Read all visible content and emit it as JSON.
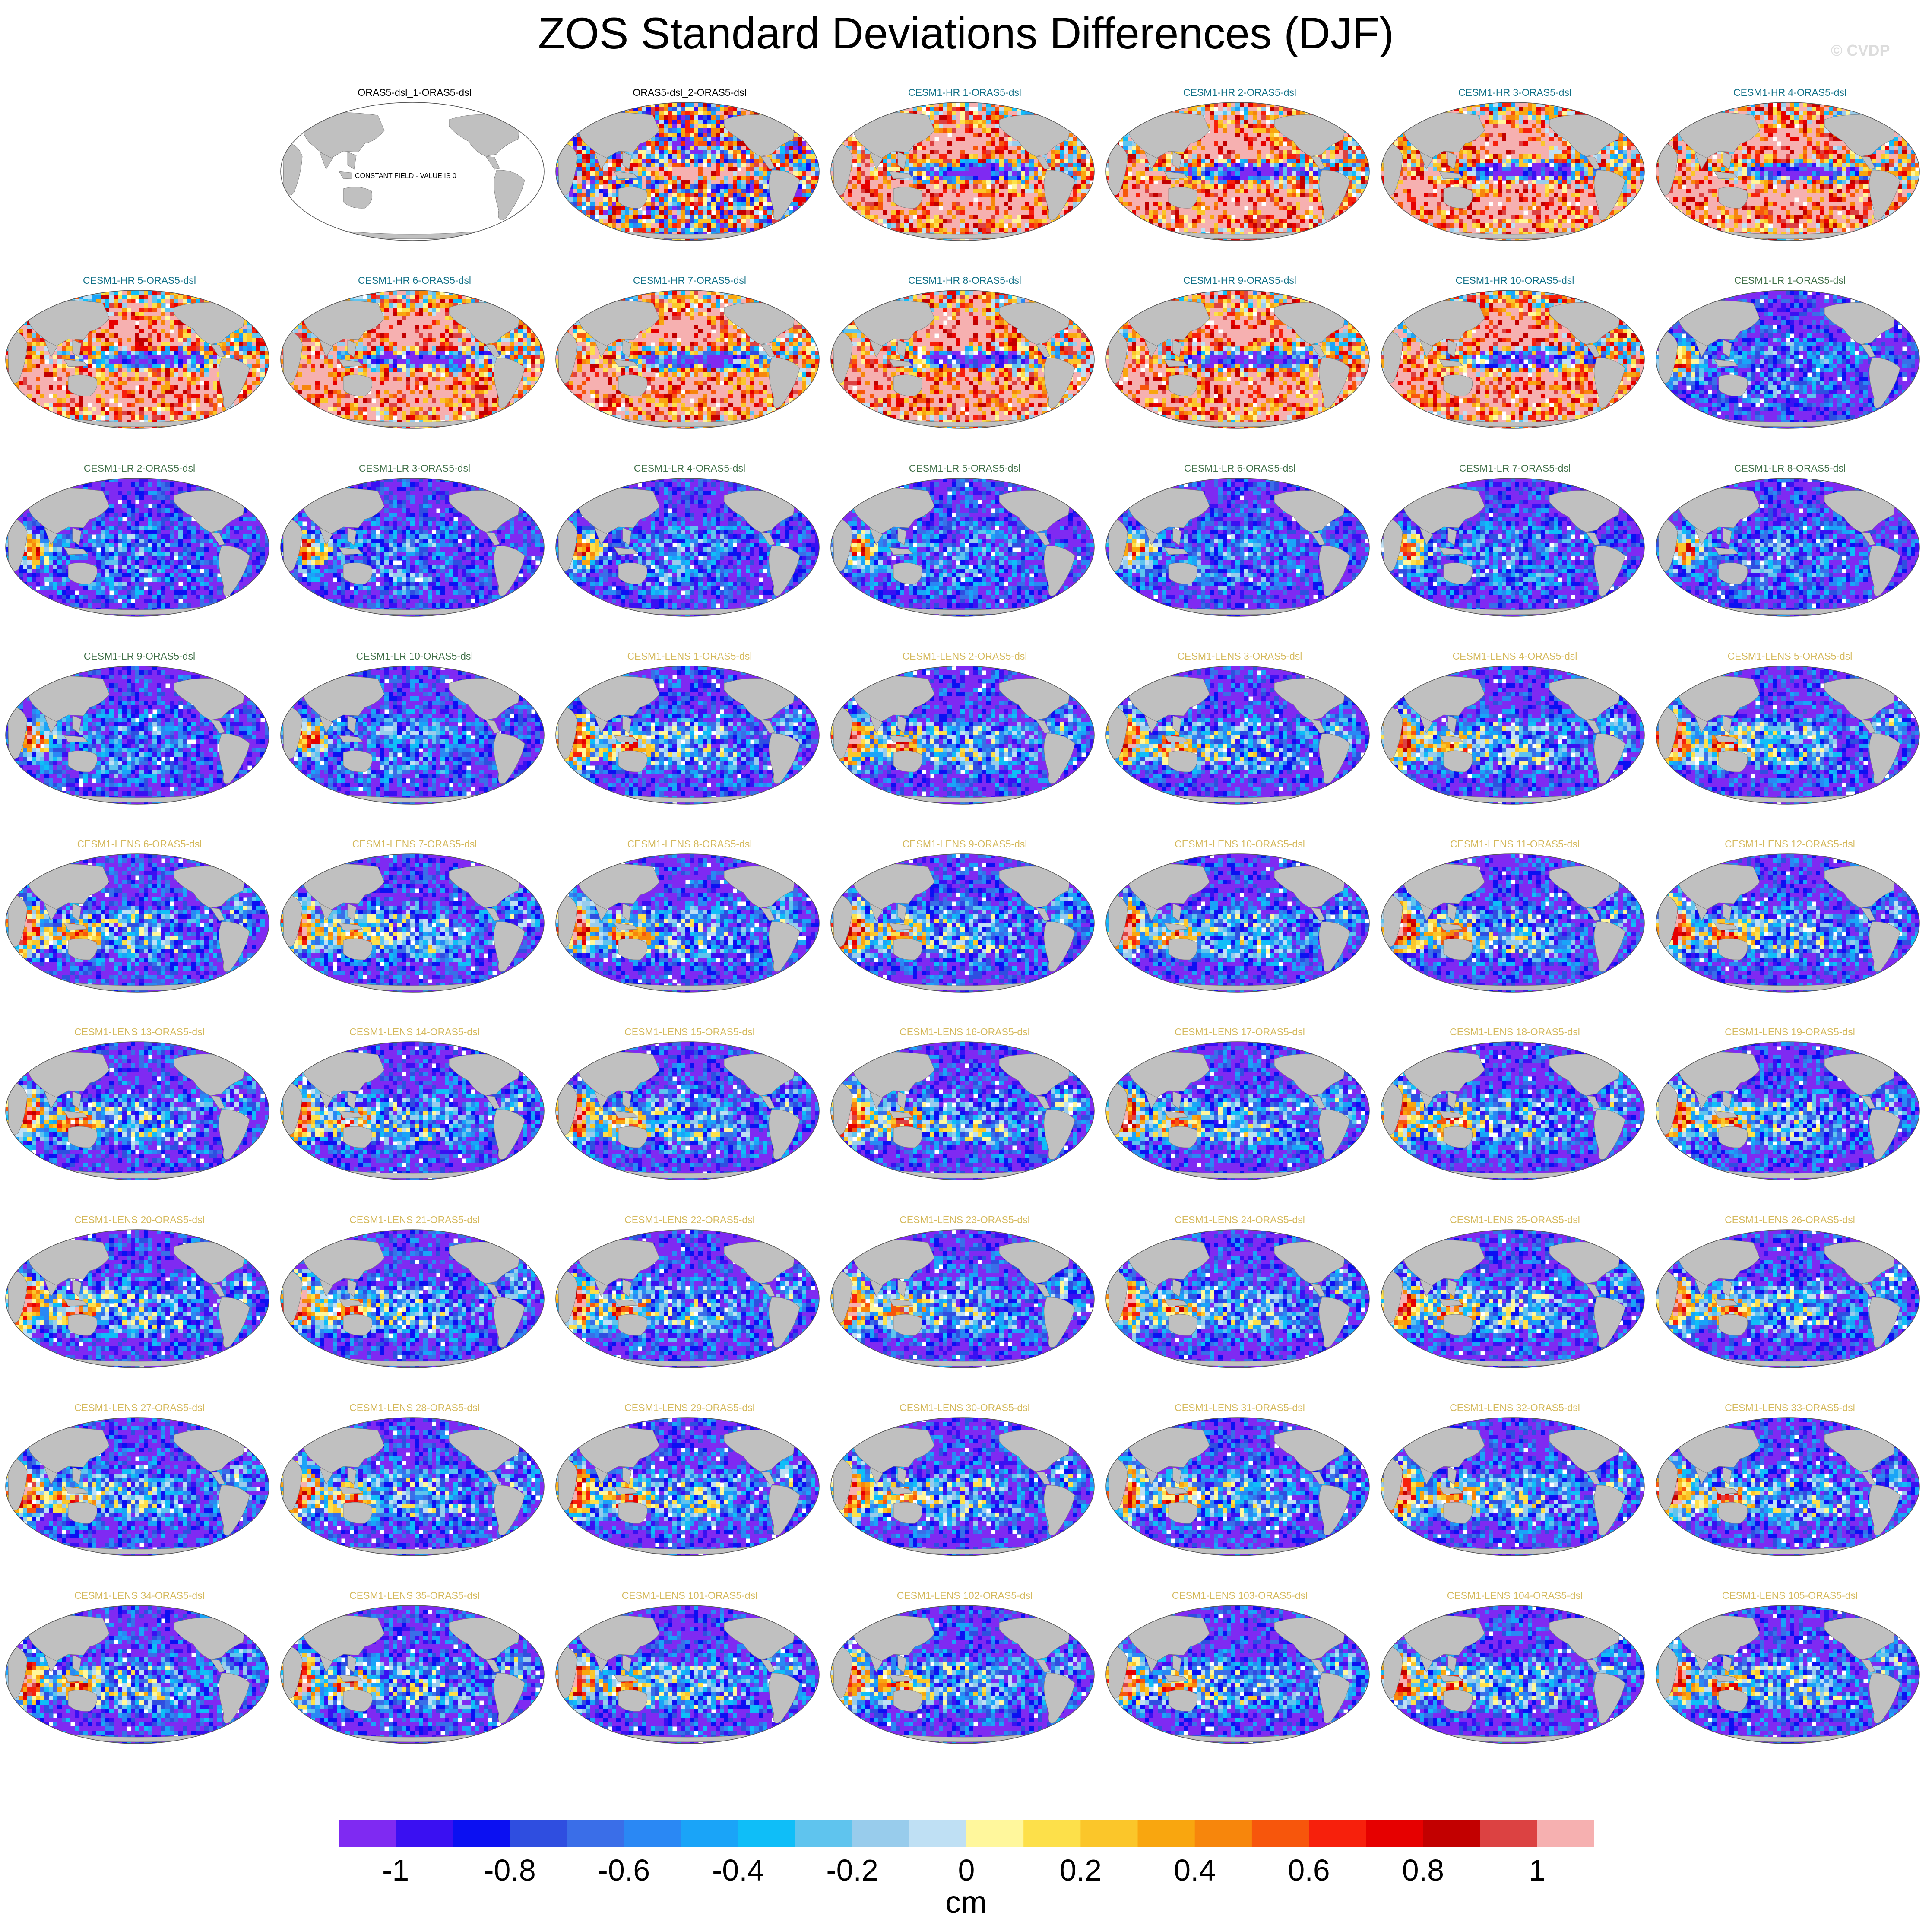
{
  "title": "ZOS Standard Deviations Differences (DJF)",
  "watermark": "© CVDP",
  "chart_data": {
    "type": "heatmap",
    "title": "ZOS Standard Deviations Differences (DJF)",
    "projection": "Robinson (global, Pacific-centered)",
    "layout": "10 rows x 7 columns, first cell empty",
    "constant_field_label": "CONSTANT FIELD - VALUE IS 0",
    "panels": [
      {
        "name": "ORAS5-dsl_1-ORAS5-dsl",
        "group": "ORAS5",
        "constant": true
      },
      {
        "name": "ORAS5-dsl_2-ORAS5-dsl",
        "group": "ORAS5"
      },
      {
        "name": "CESM1-HR 1-ORAS5-dsl",
        "group": "CESM1-HR"
      },
      {
        "name": "CESM1-HR 2-ORAS5-dsl",
        "group": "CESM1-HR"
      },
      {
        "name": "CESM1-HR 3-ORAS5-dsl",
        "group": "CESM1-HR"
      },
      {
        "name": "CESM1-HR 4-ORAS5-dsl",
        "group": "CESM1-HR"
      },
      {
        "name": "CESM1-HR 5-ORAS5-dsl",
        "group": "CESM1-HR"
      },
      {
        "name": "CESM1-HR 6-ORAS5-dsl",
        "group": "CESM1-HR"
      },
      {
        "name": "CESM1-HR 7-ORAS5-dsl",
        "group": "CESM1-HR"
      },
      {
        "name": "CESM1-HR 8-ORAS5-dsl",
        "group": "CESM1-HR"
      },
      {
        "name": "CESM1-HR 9-ORAS5-dsl",
        "group": "CESM1-HR"
      },
      {
        "name": "CESM1-HR 10-ORAS5-dsl",
        "group": "CESM1-HR"
      },
      {
        "name": "CESM1-LR 1-ORAS5-dsl",
        "group": "CESM1-LR"
      },
      {
        "name": "CESM1-LR 2-ORAS5-dsl",
        "group": "CESM1-LR"
      },
      {
        "name": "CESM1-LR 3-ORAS5-dsl",
        "group": "CESM1-LR"
      },
      {
        "name": "CESM1-LR 4-ORAS5-dsl",
        "group": "CESM1-LR"
      },
      {
        "name": "CESM1-LR 5-ORAS5-dsl",
        "group": "CESM1-LR"
      },
      {
        "name": "CESM1-LR 6-ORAS5-dsl",
        "group": "CESM1-LR"
      },
      {
        "name": "CESM1-LR 7-ORAS5-dsl",
        "group": "CESM1-LR"
      },
      {
        "name": "CESM1-LR 8-ORAS5-dsl",
        "group": "CESM1-LR"
      },
      {
        "name": "CESM1-LR 9-ORAS5-dsl",
        "group": "CESM1-LR"
      },
      {
        "name": "CESM1-LR 10-ORAS5-dsl",
        "group": "CESM1-LR"
      },
      {
        "name": "CESM1-LENS 1-ORAS5-dsl",
        "group": "CESM1-LENS"
      },
      {
        "name": "CESM1-LENS 2-ORAS5-dsl",
        "group": "CESM1-LENS"
      },
      {
        "name": "CESM1-LENS 3-ORAS5-dsl",
        "group": "CESM1-LENS"
      },
      {
        "name": "CESM1-LENS 4-ORAS5-dsl",
        "group": "CESM1-LENS"
      },
      {
        "name": "CESM1-LENS 5-ORAS5-dsl",
        "group": "CESM1-LENS"
      },
      {
        "name": "CESM1-LENS 6-ORAS5-dsl",
        "group": "CESM1-LENS"
      },
      {
        "name": "CESM1-LENS 7-ORAS5-dsl",
        "group": "CESM1-LENS"
      },
      {
        "name": "CESM1-LENS 8-ORAS5-dsl",
        "group": "CESM1-LENS"
      },
      {
        "name": "CESM1-LENS 9-ORAS5-dsl",
        "group": "CESM1-LENS"
      },
      {
        "name": "CESM1-LENS 10-ORAS5-dsl",
        "group": "CESM1-LENS"
      },
      {
        "name": "CESM1-LENS 11-ORAS5-dsl",
        "group": "CESM1-LENS"
      },
      {
        "name": "CESM1-LENS 12-ORAS5-dsl",
        "group": "CESM1-LENS"
      },
      {
        "name": "CESM1-LENS 13-ORAS5-dsl",
        "group": "CESM1-LENS"
      },
      {
        "name": "CESM1-LENS 14-ORAS5-dsl",
        "group": "CESM1-LENS"
      },
      {
        "name": "CESM1-LENS 15-ORAS5-dsl",
        "group": "CESM1-LENS"
      },
      {
        "name": "CESM1-LENS 16-ORAS5-dsl",
        "group": "CESM1-LENS"
      },
      {
        "name": "CESM1-LENS 17-ORAS5-dsl",
        "group": "CESM1-LENS"
      },
      {
        "name": "CESM1-LENS 18-ORAS5-dsl",
        "group": "CESM1-LENS"
      },
      {
        "name": "CESM1-LENS 19-ORAS5-dsl",
        "group": "CESM1-LENS"
      },
      {
        "name": "CESM1-LENS 20-ORAS5-dsl",
        "group": "CESM1-LENS"
      },
      {
        "name": "CESM1-LENS 21-ORAS5-dsl",
        "group": "CESM1-LENS"
      },
      {
        "name": "CESM1-LENS 22-ORAS5-dsl",
        "group": "CESM1-LENS"
      },
      {
        "name": "CESM1-LENS 23-ORAS5-dsl",
        "group": "CESM1-LENS"
      },
      {
        "name": "CESM1-LENS 24-ORAS5-dsl",
        "group": "CESM1-LENS"
      },
      {
        "name": "CESM1-LENS 25-ORAS5-dsl",
        "group": "CESM1-LENS"
      },
      {
        "name": "CESM1-LENS 26-ORAS5-dsl",
        "group": "CESM1-LENS"
      },
      {
        "name": "CESM1-LENS 27-ORAS5-dsl",
        "group": "CESM1-LENS"
      },
      {
        "name": "CESM1-LENS 28-ORAS5-dsl",
        "group": "CESM1-LENS"
      },
      {
        "name": "CESM1-LENS 29-ORAS5-dsl",
        "group": "CESM1-LENS"
      },
      {
        "name": "CESM1-LENS 30-ORAS5-dsl",
        "group": "CESM1-LENS"
      },
      {
        "name": "CESM1-LENS 31-ORAS5-dsl",
        "group": "CESM1-LENS"
      },
      {
        "name": "CESM1-LENS 32-ORAS5-dsl",
        "group": "CESM1-LENS"
      },
      {
        "name": "CESM1-LENS 33-ORAS5-dsl",
        "group": "CESM1-LENS"
      },
      {
        "name": "CESM1-LENS 34-ORAS5-dsl",
        "group": "CESM1-LENS"
      },
      {
        "name": "CESM1-LENS 35-ORAS5-dsl",
        "group": "CESM1-LENS"
      },
      {
        "name": "CESM1-LENS 101-ORAS5-dsl",
        "group": "CESM1-LENS"
      },
      {
        "name": "CESM1-LENS 102-ORAS5-dsl",
        "group": "CESM1-LENS"
      },
      {
        "name": "CESM1-LENS 103-ORAS5-dsl",
        "group": "CESM1-LENS"
      },
      {
        "name": "CESM1-LENS 104-ORAS5-dsl",
        "group": "CESM1-LENS"
      },
      {
        "name": "CESM1-LENS 105-ORAS5-dsl",
        "group": "CESM1-LENS"
      }
    ],
    "group_title_colors": {
      "ORAS5": "#000000",
      "CESM1-HR": "#0f6f86",
      "CESM1-LR": "#3f6f47",
      "CESM1-LENS": "#d4b85a"
    },
    "colorbar": {
      "units": "cm",
      "levels": [
        -1.1,
        -1,
        -0.9,
        -0.8,
        -0.7,
        -0.6,
        -0.5,
        -0.4,
        -0.3,
        -0.2,
        -0.1,
        0,
        0.1,
        0.2,
        0.3,
        0.4,
        0.5,
        0.6,
        0.7,
        0.8,
        0.9,
        1,
        1.1
      ],
      "tick_values": [
        -1,
        -0.8,
        -0.6,
        -0.4,
        -0.2,
        0,
        0.2,
        0.4,
        0.6,
        0.8,
        1
      ],
      "tick_labels": [
        "-1",
        "-0.8",
        "-0.6",
        "-0.4",
        "-0.2",
        "0",
        "0.2",
        "0.4",
        "0.6",
        "0.8",
        "1"
      ],
      "colors": [
        "#7f2af2",
        "#3a10f2",
        "#0b10f2",
        "#2f4ee0",
        "#3a6ee8",
        "#2a88f4",
        "#1aa4f8",
        "#0fbef8",
        "#5fc4ee",
        "#98ccec",
        "#bfe0f4",
        "#fff79c",
        "#fde04a",
        "#fbc62a",
        "#f9a60f",
        "#f7860c",
        "#f7560c",
        "#f7200c",
        "#e60000",
        "#c20000",
        "#dc4242",
        "#f6b0b0"
      ],
      "land_color": "#c0c0c0",
      "missing_color": "#ffffff"
    }
  }
}
